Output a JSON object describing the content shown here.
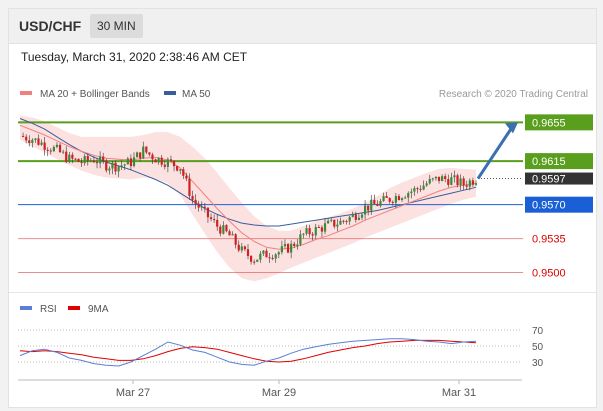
{
  "header": {
    "pair": "USD/CHF",
    "timeframe": "30 MIN",
    "timestamp": "Tuesday, March 31, 2020 2:38:46 AM CET"
  },
  "legend": {
    "ma20_label": "MA 20 + Bollinger Bands",
    "ma50_label": "MA 50",
    "credit": "Research © 2020 Trading Central",
    "ma20_color": "#f08080",
    "ma50_color": "#3a5d9c"
  },
  "rsi_legend": {
    "rsi_label": "RSI",
    "ma9_label": "9MA",
    "rsi_color": "#5b7fd6",
    "ma9_color": "#e00000"
  },
  "colors": {
    "resistance": "#5a9e1e",
    "support": "#1a5fd6",
    "minor": "#e06060",
    "current": "#333333",
    "candle_up": "#3a8a3a",
    "candle_down": "#d02020"
  },
  "chart_data": [
    {
      "type": "candlestick",
      "instrument": "USD/CHF",
      "interval": "30 MIN",
      "x_ticks": [
        "Mar 27",
        "Mar 29",
        "Mar 31"
      ],
      "ylim": [
        0.9485,
        0.9675
      ],
      "levels": [
        {
          "value": 0.9655,
          "label": "0.9655",
          "kind": "resistance"
        },
        {
          "value": 0.9615,
          "label": "0.9615",
          "kind": "resistance"
        },
        {
          "value": 0.9597,
          "label": "0.9597",
          "kind": "current"
        },
        {
          "value": 0.957,
          "label": "0.9570",
          "kind": "support"
        },
        {
          "value": 0.9535,
          "label": "0.9535",
          "kind": "minor"
        },
        {
          "value": 0.95,
          "label": "0.9500",
          "kind": "minor"
        }
      ],
      "price_path": [
        0.9641,
        0.9638,
        0.9632,
        0.9626,
        0.9617,
        0.9614,
        0.9617,
        0.9611,
        0.961,
        0.9614,
        0.9626,
        0.9618,
        0.9614,
        0.9609,
        0.9575,
        0.9561,
        0.9548,
        0.9538,
        0.9522,
        0.9514,
        0.9519,
        0.9521,
        0.9527,
        0.9539,
        0.9544,
        0.9549,
        0.9552,
        0.9558,
        0.9567,
        0.9571,
        0.9576,
        0.9581,
        0.9585,
        0.9592,
        0.9597,
        0.9596,
        0.9591,
        0.9597
      ],
      "ma20": [
        0.9652,
        0.9647,
        0.9642,
        0.9636,
        0.963,
        0.9625,
        0.9621,
        0.9618,
        0.9617,
        0.9616,
        0.9618,
        0.9619,
        0.9616,
        0.9608,
        0.9594,
        0.958,
        0.9566,
        0.9553,
        0.9541,
        0.9532,
        0.9526,
        0.9524,
        0.9525,
        0.9529,
        0.9534,
        0.9538,
        0.9543,
        0.9548,
        0.9554,
        0.9559,
        0.9564,
        0.9569,
        0.9574,
        0.9579,
        0.9584,
        0.9588,
        0.959,
        0.9592
      ],
      "ma50": [
        0.9659,
        0.9654,
        0.9648,
        0.964,
        0.9632,
        0.9625,
        0.9619,
        0.9614,
        0.961,
        0.9606,
        0.9601,
        0.9596,
        0.959,
        0.9582,
        0.9574,
        0.9566,
        0.956,
        0.9555,
        0.9551,
        0.9549,
        0.9548,
        0.9548,
        0.955,
        0.9552,
        0.9554,
        0.9556,
        0.9558,
        0.956,
        0.9562,
        0.9564,
        0.9567,
        0.957,
        0.9573,
        0.9576,
        0.9579,
        0.9582,
        0.9585,
        0.9588
      ],
      "bollinger_upper": [
        0.9662,
        0.966,
        0.9656,
        0.965,
        0.9644,
        0.964,
        0.964,
        0.964,
        0.964,
        0.964,
        0.9642,
        0.9645,
        0.9645,
        0.964,
        0.963,
        0.9618,
        0.9603,
        0.9587,
        0.9572,
        0.9558,
        0.9548,
        0.9543,
        0.9543,
        0.9548,
        0.9553,
        0.9557,
        0.9561,
        0.9566,
        0.9572,
        0.9579,
        0.9587,
        0.9593,
        0.9598,
        0.9603,
        0.9607,
        0.9608,
        0.9607,
        0.9606
      ],
      "bollinger_lower": [
        0.9637,
        0.963,
        0.9624,
        0.9617,
        0.9611,
        0.9605,
        0.9601,
        0.9598,
        0.9597,
        0.9596,
        0.9598,
        0.9597,
        0.9592,
        0.958,
        0.956,
        0.954,
        0.9521,
        0.9505,
        0.9494,
        0.9491,
        0.9494,
        0.9499,
        0.9505,
        0.951,
        0.9515,
        0.952,
        0.9525,
        0.953,
        0.9536,
        0.9541,
        0.9546,
        0.9551,
        0.9556,
        0.9561,
        0.9566,
        0.9571,
        0.9575,
        0.9578
      ]
    },
    {
      "type": "line",
      "name": "RSI",
      "y_ticks": [
        "70",
        "50",
        "30"
      ],
      "ylim": [
        10,
        80
      ],
      "rsi": [
        38,
        44,
        46,
        42,
        35,
        32,
        28,
        26,
        25,
        30,
        38,
        46,
        55,
        51,
        45,
        42,
        36,
        30,
        27,
        26,
        31,
        35,
        41,
        46,
        49,
        52,
        54,
        56,
        57,
        58,
        59,
        59,
        58,
        56,
        55,
        53,
        55,
        56
      ],
      "ma9": [
        44,
        43,
        44,
        43,
        41,
        39,
        36,
        34,
        32,
        32,
        34,
        38,
        43,
        47,
        49,
        48,
        46,
        42,
        38,
        34,
        31,
        30,
        31,
        34,
        38,
        42,
        45,
        48,
        50,
        53,
        55,
        56,
        57,
        57,
        57,
        56,
        55,
        54
      ]
    }
  ]
}
